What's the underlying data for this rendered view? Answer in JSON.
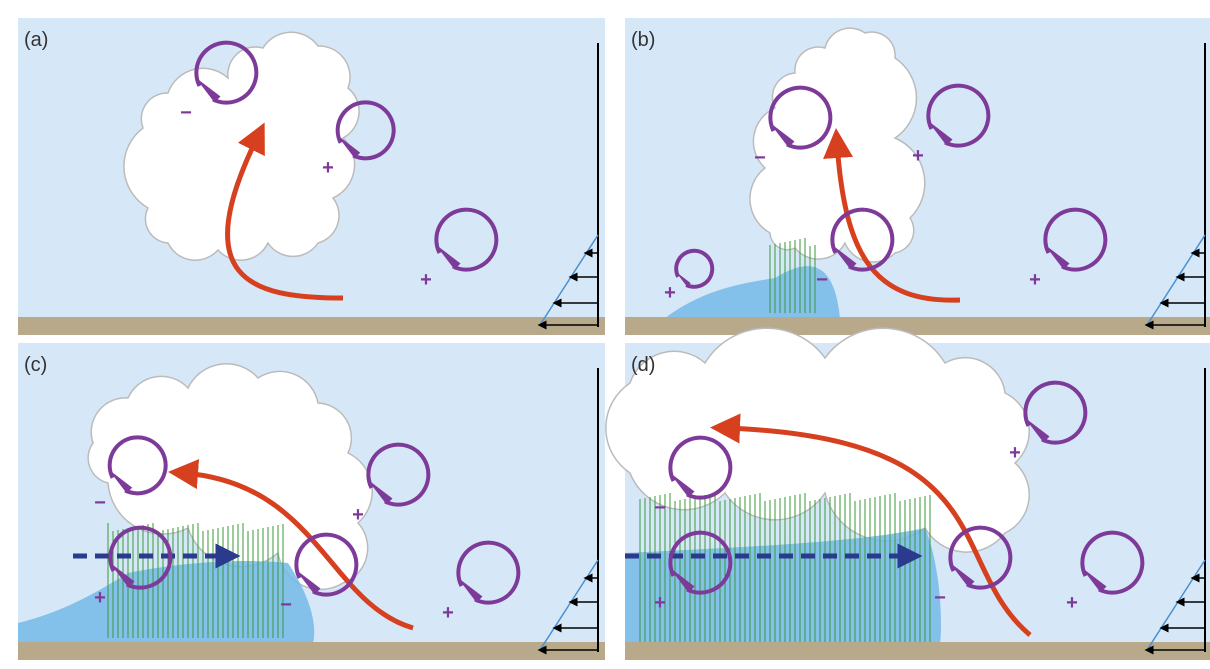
{
  "panels": [
    {
      "label": "(a)",
      "vortices": [
        {
          "sign": "−"
        },
        {
          "sign": "+"
        },
        {
          "sign": "+"
        }
      ]
    },
    {
      "label": "(b)",
      "vortices": [
        {
          "sign": "+"
        },
        {
          "sign": "−"
        },
        {
          "sign": "−"
        },
        {
          "sign": "+"
        },
        {
          "sign": "+"
        }
      ]
    },
    {
      "label": "(c)",
      "vortices": [
        {
          "sign": "−"
        },
        {
          "sign": "+"
        },
        {
          "sign": "−"
        },
        {
          "sign": "+"
        },
        {
          "sign": "+"
        }
      ]
    },
    {
      "label": "(d)",
      "vortices": [
        {
          "sign": "−"
        },
        {
          "sign": "+"
        },
        {
          "sign": "−"
        },
        {
          "sign": "+"
        },
        {
          "sign": "+"
        }
      ]
    }
  ]
}
